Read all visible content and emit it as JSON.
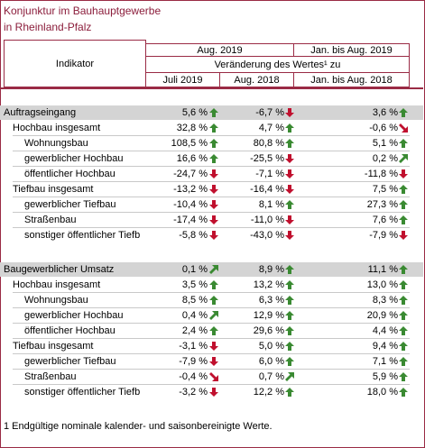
{
  "title": {
    "line1": "Konjunktur im Bauhauptgewerbe",
    "line2": "in Rheinland-Pfalz"
  },
  "header": {
    "indikator": "Indikator",
    "aug2019": "Aug. 2019",
    "jan_aug_2019": "Jan. bis Aug. 2019",
    "veraenderung": "Veränderung des Wertes¹ zu",
    "juli2019": "Juli 2019",
    "aug2018": "Aug. 2018",
    "jan_aug_2018": "Jan. bis Aug. 2018"
  },
  "colors": {
    "up": "#3a8a32",
    "down": "#c0102e",
    "accent": "#8b1d3b",
    "shade": "#d4d4d4"
  },
  "rows": [
    {
      "label": "Auftragseingang",
      "v1": "5,6 %",
      "d1": "up",
      "v2": "-6,7 %",
      "d2": "down",
      "v3": "3,6 %",
      "d3": "up"
    },
    {
      "label": "Hochbau insgesamt",
      "v1": "32,8 %",
      "d1": "up",
      "v2": "4,7 %",
      "d2": "up",
      "v3": "-0,6 %",
      "d3": "downright"
    },
    {
      "label": "Wohnungsbau",
      "v1": "108,5 %",
      "d1": "up",
      "v2": "80,8 %",
      "d2": "up",
      "v3": "5,1 %",
      "d3": "up"
    },
    {
      "label": "gewerblicher Hochbau",
      "v1": "16,6 %",
      "d1": "up",
      "v2": "-25,5 %",
      "d2": "down",
      "v3": "0,2 %",
      "d3": "upright"
    },
    {
      "label": "öffentlicher Hochbau",
      "v1": "-24,7 %",
      "d1": "down",
      "v2": "-7,1 %",
      "d2": "down",
      "v3": "-11,8 %",
      "d3": "down"
    },
    {
      "label": "Tiefbau insgesamt",
      "v1": "-13,2 %",
      "d1": "down",
      "v2": "-16,4 %",
      "d2": "down",
      "v3": "7,5 %",
      "d3": "up"
    },
    {
      "label": "gewerblicher Tiefbau",
      "v1": "-10,4 %",
      "d1": "down",
      "v2": "8,1 %",
      "d2": "up",
      "v3": "27,3 %",
      "d3": "up"
    },
    {
      "label": "Straßenbau",
      "v1": "-17,4 %",
      "d1": "down",
      "v2": "-11,0 %",
      "d2": "down",
      "v3": "7,6 %",
      "d3": "up"
    },
    {
      "label": "sonstiger öffentlicher Tiefb",
      "v1": "-5,8 %",
      "d1": "down",
      "v2": "-43,0 %",
      "d2": "down",
      "v3": "-7,9 %",
      "d3": "down"
    },
    {
      "label": "Baugewerblicher Umsatz",
      "v1": "0,1 %",
      "d1": "upright",
      "v2": "8,9 %",
      "d2": "up",
      "v3": "11,1 %",
      "d3": "up"
    },
    {
      "label": "Hochbau insgesamt",
      "v1": "3,5 %",
      "d1": "up",
      "v2": "13,2 %",
      "d2": "up",
      "v3": "13,0 %",
      "d3": "up"
    },
    {
      "label": "Wohnungsbau",
      "v1": "8,5 %",
      "d1": "up",
      "v2": "6,3 %",
      "d2": "up",
      "v3": "8,3 %",
      "d3": "up"
    },
    {
      "label": "gewerblicher Hochbau",
      "v1": "0,4 %",
      "d1": "upright",
      "v2": "12,9 %",
      "d2": "up",
      "v3": "20,9 %",
      "d3": "up"
    },
    {
      "label": "öffentlicher Hochbau",
      "v1": "2,4 %",
      "d1": "up",
      "v2": "29,6 %",
      "d2": "up",
      "v3": "4,4 %",
      "d3": "up"
    },
    {
      "label": "Tiefbau insgesamt",
      "v1": "-3,1 %",
      "d1": "down",
      "v2": "5,0 %",
      "d2": "up",
      "v3": "9,4 %",
      "d3": "up"
    },
    {
      "label": "gewerblicher Tiefbau",
      "v1": "-7,9 %",
      "d1": "down",
      "v2": "6,0 %",
      "d2": "up",
      "v3": "7,1 %",
      "d3": "up"
    },
    {
      "label": "Straßenbau",
      "v1": "-0,4 %",
      "d1": "downright",
      "v2": "0,7 %",
      "d2": "upright",
      "v3": "5,9 %",
      "d3": "up"
    },
    {
      "label": "sonstiger öffentlicher Tiefb",
      "v1": "-3,2 %",
      "d1": "down",
      "v2": "12,2 %",
      "d2": "up",
      "v3": "18,0 %",
      "d3": "up"
    }
  ],
  "footnote": "1 Endgültige nominale kalender- und saisonbereinigte Werte."
}
